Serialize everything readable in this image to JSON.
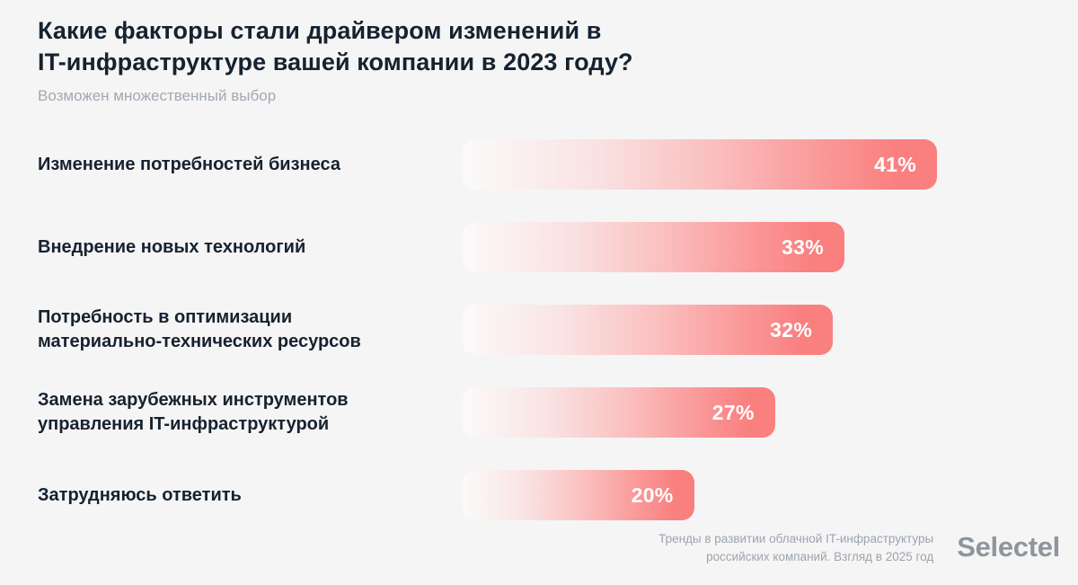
{
  "header": {
    "title_line1": "Какие факторы стали драйвером изменений в",
    "title_line2": "IT-инфраструктуре вашей компании в 2023 году?",
    "subtitle": "Возможен множественный выбор"
  },
  "footer": {
    "source_line1": "Тренды в развитии облачной IT-инфраструктуры",
    "source_line2": "российских компаний. Взгляд в 2025 год",
    "brand": "Selectel"
  },
  "colors": {
    "background": "#F5F5F6",
    "bar_solid": "#FA7F7F",
    "title_text": "#16222F",
    "muted_text": "#9CA4AD",
    "bar_value_text": "#FFFFFF",
    "brand_text": "#8D969E"
  },
  "chart_data": {
    "type": "bar",
    "orientation": "horizontal",
    "unit": "%",
    "title": "Какие факторы стали драйвером изменений в IT-инфраструктуре вашей компании в 2023 году?",
    "subtitle": "Возможен множественный выбор",
    "categories": [
      "Изменение потребностей бизнеса",
      "Внедрение новых технологий",
      "Потребность в оптимизации материально-технических ресурсов",
      "Замена зарубежных инструментов управления IT-инфраструктурой",
      "Затрудняюсь ответить"
    ],
    "values": [
      41,
      33,
      32,
      27,
      20
    ],
    "value_suffix": "%",
    "scale_max": 41,
    "axes_shown": false,
    "gridlines_shown": false,
    "legend": null,
    "value_labels": "inside-bar-right",
    "items": [
      {
        "label_lines": [
          "Изменение потребностей бизнеса"
        ],
        "value": 41
      },
      {
        "label_lines": [
          "Внедрение новых технологий"
        ],
        "value": 33
      },
      {
        "label_lines": [
          "Потребность в оптимизации",
          "материально-технических ресурсов"
        ],
        "value": 32
      },
      {
        "label_lines": [
          "Замена зарубежных инструментов",
          "управления IT-инфраструктурой"
        ],
        "value": 27
      },
      {
        "label_lines": [
          "Затрудняюсь ответить"
        ],
        "value": 20
      }
    ]
  }
}
